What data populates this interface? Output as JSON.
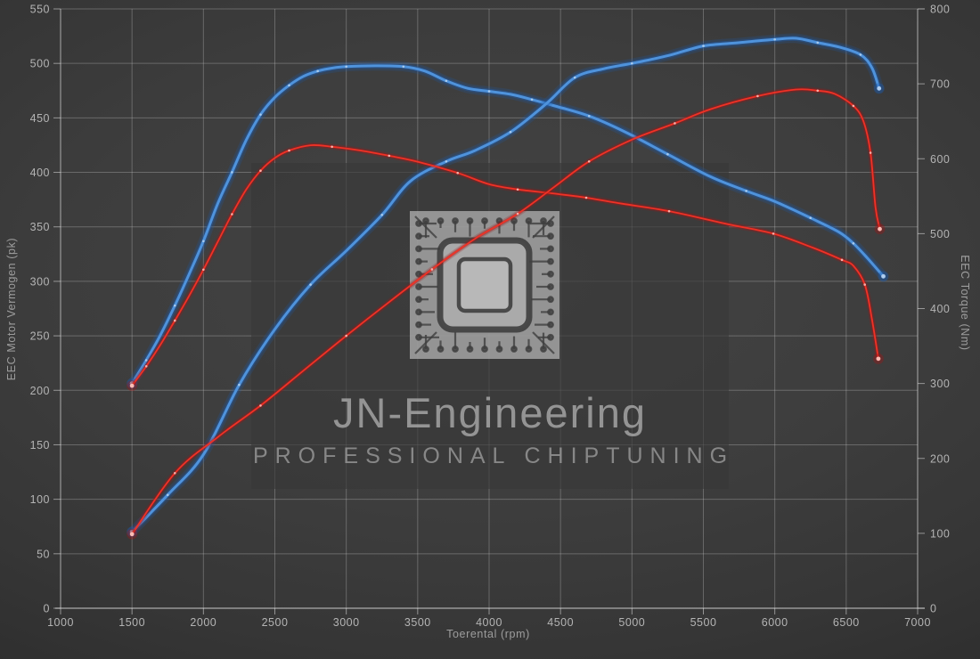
{
  "watermark": {
    "line1": "JN-Engineering",
    "line2": "PROFESSIONAL CHIPTUNING"
  },
  "axes": {
    "x": {
      "label": "Toerental (rpm)",
      "min": 1000,
      "max": 7000,
      "step": 500,
      "tick_labels": [
        "1000",
        "1500",
        "2000",
        "2500",
        "3000",
        "3500",
        "4000",
        "4500",
        "5000",
        "5500",
        "6000",
        "6500",
        "7000"
      ]
    },
    "y_left": {
      "label": "EEC Motor Vermogen (pk)",
      "min": 0,
      "max": 550,
      "step": 50,
      "tick_labels": [
        "0",
        "50",
        "100",
        "150",
        "200",
        "250",
        "300",
        "350",
        "400",
        "450",
        "500",
        "550"
      ]
    },
    "y_right": {
      "label": "EEC Torque (Nm)",
      "min": 0,
      "max": 800,
      "step": 100,
      "tick_labels": [
        "0",
        "100",
        "200",
        "300",
        "400",
        "500",
        "600",
        "700",
        "800"
      ]
    }
  },
  "chart_data": {
    "type": "line",
    "title": "",
    "xlabel": "Toerental (rpm)",
    "ylabel_left": "EEC Motor Vermogen (pk)",
    "ylabel_right": "EEC Torque (Nm)",
    "x_range": [
      1000,
      7000
    ],
    "y_left_range": [
      0,
      550
    ],
    "y_right_range": [
      0,
      800
    ],
    "grid": true,
    "legend": "none",
    "series": [
      {
        "id": "torque-blue",
        "axis": "right",
        "unit": "Nm",
        "color": "#4f93dc",
        "glow": "#1d5cae",
        "marker": "#b5d2f0",
        "width": 3,
        "peak": {
          "rpm": 3200,
          "value": 724
        },
        "points": [
          [
            1500,
            300
          ],
          [
            1600,
            331
          ],
          [
            1700,
            365
          ],
          [
            1800,
            404
          ],
          [
            1900,
            446
          ],
          [
            2000,
            490
          ],
          [
            2100,
            540
          ],
          [
            2200,
            582
          ],
          [
            2300,
            625
          ],
          [
            2400,
            659
          ],
          [
            2500,
            682
          ],
          [
            2600,
            698
          ],
          [
            2700,
            710
          ],
          [
            2800,
            717
          ],
          [
            2900,
            721
          ],
          [
            3000,
            723
          ],
          [
            3200,
            724
          ],
          [
            3400,
            723
          ],
          [
            3550,
            717
          ],
          [
            3700,
            704
          ],
          [
            3850,
            694
          ],
          [
            4000,
            690
          ],
          [
            4150,
            686
          ],
          [
            4300,
            679
          ],
          [
            4450,
            671
          ],
          [
            4700,
            657
          ],
          [
            4950,
            636
          ],
          [
            5250,
            606
          ],
          [
            5550,
            576
          ],
          [
            5800,
            557
          ],
          [
            6000,
            543
          ],
          [
            6250,
            521
          ],
          [
            6450,
            502
          ],
          [
            6550,
            487
          ],
          [
            6650,
            467
          ],
          [
            6760,
            443
          ]
        ]
      },
      {
        "id": "power-blue",
        "axis": "left",
        "unit": "pk",
        "color": "#4f93dc",
        "glow": "#1d5cae",
        "marker": "#b5d2f0",
        "width": 3,
        "peak": {
          "rpm": 6150,
          "value": 523
        },
        "points": [
          [
            1500,
            70
          ],
          [
            1750,
            104
          ],
          [
            2000,
            141
          ],
          [
            2250,
            205
          ],
          [
            2500,
            256
          ],
          [
            2750,
            297
          ],
          [
            3000,
            328
          ],
          [
            3250,
            361
          ],
          [
            3450,
            392
          ],
          [
            3700,
            410
          ],
          [
            3900,
            420
          ],
          [
            4150,
            437
          ],
          [
            4400,
            463
          ],
          [
            4600,
            487
          ],
          [
            4800,
            495
          ],
          [
            5000,
            500
          ],
          [
            5250,
            507
          ],
          [
            5500,
            516
          ],
          [
            5750,
            519
          ],
          [
            6000,
            522
          ],
          [
            6150,
            523
          ],
          [
            6300,
            519
          ],
          [
            6450,
            515
          ],
          [
            6600,
            508
          ],
          [
            6680,
            496
          ],
          [
            6730,
            477
          ]
        ]
      },
      {
        "id": "torque-red",
        "axis": "right",
        "unit": "Nm",
        "color": "#ef3226",
        "glow": "#a81414",
        "marker": "#ffc4bd",
        "width": 1.8,
        "peak": {
          "rpm": 2750,
          "value": 618
        },
        "points": [
          [
            1500,
            297
          ],
          [
            1600,
            323
          ],
          [
            1700,
            352
          ],
          [
            1800,
            384
          ],
          [
            1900,
            417
          ],
          [
            2000,
            452
          ],
          [
            2100,
            489
          ],
          [
            2200,
            526
          ],
          [
            2300,
            559
          ],
          [
            2400,
            584
          ],
          [
            2500,
            601
          ],
          [
            2600,
            611
          ],
          [
            2750,
            618
          ],
          [
            2900,
            616
          ],
          [
            3100,
            611
          ],
          [
            3300,
            604
          ],
          [
            3500,
            596
          ],
          [
            3780,
            581
          ],
          [
            4000,
            566
          ],
          [
            4200,
            559
          ],
          [
            4430,
            554
          ],
          [
            4680,
            548
          ],
          [
            4930,
            540
          ],
          [
            5260,
            530
          ],
          [
            5660,
            513
          ],
          [
            5990,
            500
          ],
          [
            6270,
            481
          ],
          [
            6470,
            465
          ],
          [
            6550,
            457
          ],
          [
            6630,
            432
          ],
          [
            6680,
            386
          ],
          [
            6725,
            333
          ]
        ]
      },
      {
        "id": "power-red",
        "axis": "left",
        "unit": "pk",
        "color": "#ef3226",
        "glow": "#a81414",
        "marker": "#ffc4bd",
        "width": 1.8,
        "peak": {
          "rpm": 6150,
          "value": 476
        },
        "points": [
          [
            1500,
            68
          ],
          [
            1800,
            124
          ],
          [
            2100,
            157
          ],
          [
            2400,
            186
          ],
          [
            2700,
            218
          ],
          [
            3000,
            250
          ],
          [
            3300,
            281
          ],
          [
            3600,
            311
          ],
          [
            3900,
            339
          ],
          [
            4200,
            362
          ],
          [
            4450,
            386
          ],
          [
            4700,
            410
          ],
          [
            5000,
            430
          ],
          [
            5300,
            445
          ],
          [
            5550,
            458
          ],
          [
            5880,
            470
          ],
          [
            6150,
            476
          ],
          [
            6300,
            475
          ],
          [
            6420,
            472
          ],
          [
            6550,
            461
          ],
          [
            6620,
            447
          ],
          [
            6670,
            418
          ],
          [
            6705,
            368
          ],
          [
            6735,
            348
          ]
        ]
      }
    ]
  },
  "colors": {
    "background_center": "#434343",
    "background_edge": "#242424",
    "grid_line": "#d4d4d4",
    "axis_line": "#e1e1e1",
    "tick_text": "#b4b4b4",
    "watermark_box": "#383838",
    "chip_body": "#b7b7b7",
    "chip_trace": "#3e3e3e",
    "curve_blue": "#4f93dc",
    "curve_red": "#ef3226"
  }
}
